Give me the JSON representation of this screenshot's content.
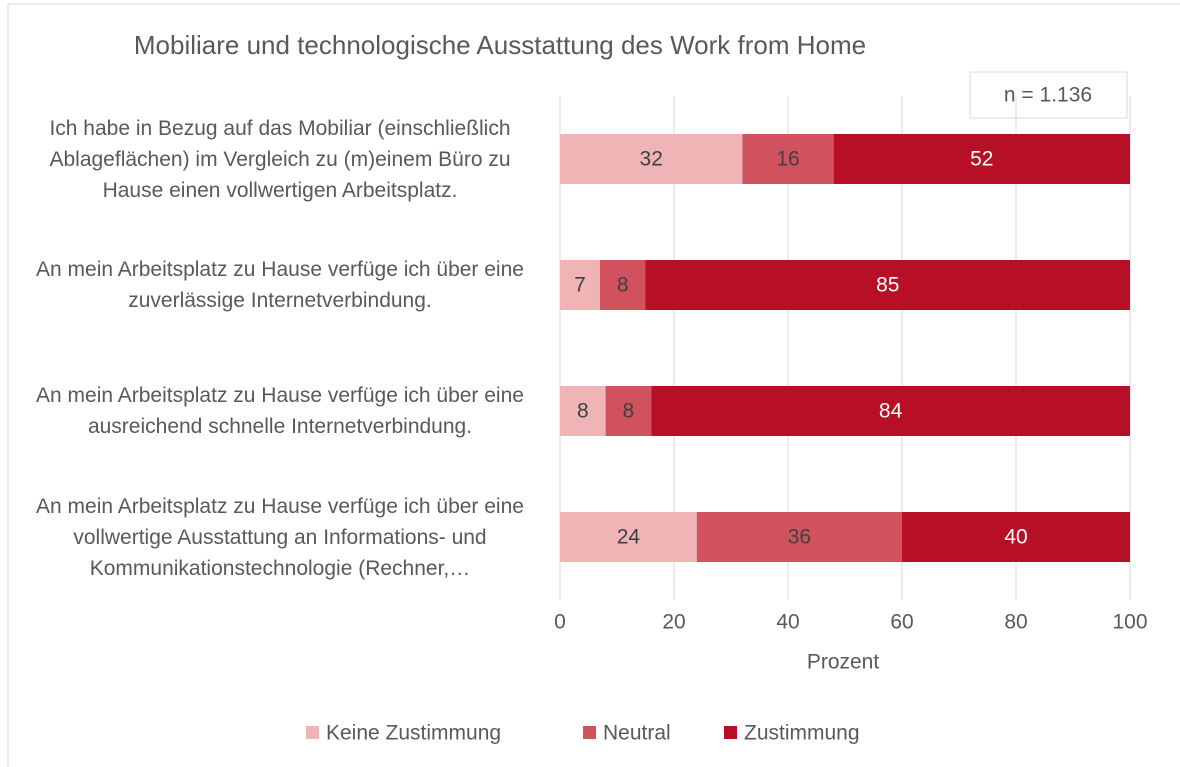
{
  "chart_data": {
    "type": "stacked_barh",
    "title": "Mobiliare und technologische Ausstattung des Work from Home",
    "annotation": "n = 1.136",
    "x_label": "Prozent",
    "categories": [
      "Ich habe in Bezug auf das Mobiliar (einschließlich Ablageflächen) im Vergleich zu (m)einem Büro zu Hause einen vollwertigen Arbeitsplatz.",
      "An mein Arbeitsplatz zu Hause verfüge ich über eine zuverlässige Internetverbindung.",
      "An mein Arbeitsplatz zu Hause verfüge ich über eine ausreichend schnelle Internetverbindung.",
      "An mein Arbeitsplatz zu Hause verfüge ich über eine vollwertige Ausstattung an Informations- und Kommunikationstechnologie (Rechner,…"
    ],
    "series": [
      {
        "name": "Keine Zustimmung",
        "color": "#f0b4b6",
        "values": [
          32,
          7,
          8,
          24
        ]
      },
      {
        "name": "Neutral",
        "color": "#d0525e",
        "values": [
          16,
          8,
          8,
          36
        ]
      },
      {
        "name": "Zustimmung",
        "color": "#b70f25",
        "values": [
          52,
          85,
          84,
          40
        ]
      }
    ],
    "xlim": [
      0,
      100
    ],
    "xticks": [
      0,
      20,
      40,
      60,
      80,
      100
    ],
    "grid": true,
    "legend": "bottom"
  }
}
